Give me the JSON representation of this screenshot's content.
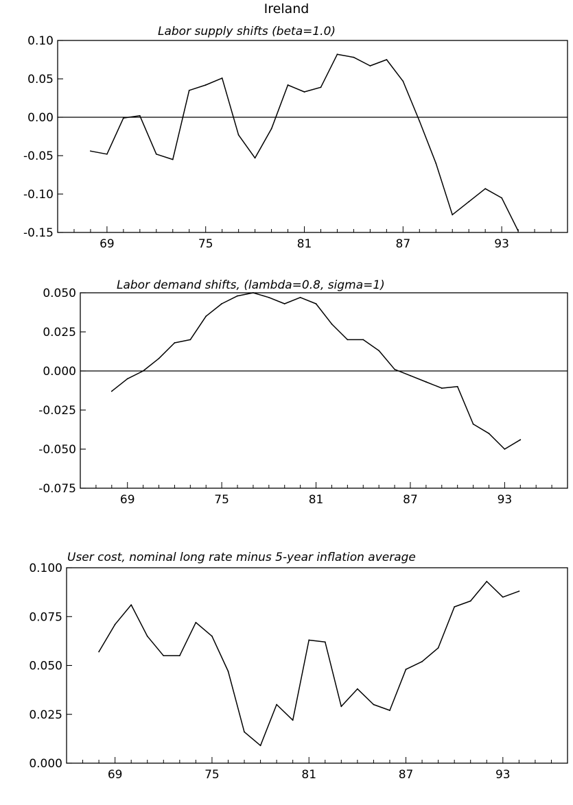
{
  "page_title": "Ireland",
  "chart_data": [
    {
      "type": "line",
      "title": "Labor supply shifts (beta=1.0)",
      "xlabel": "",
      "ylabel": "",
      "xlim": [
        1966,
        1997
      ],
      "ylim": [
        -0.15,
        0.1
      ],
      "xticks": [
        "69",
        "75",
        "81",
        "87",
        "93"
      ],
      "xtick_values": [
        1969,
        1975,
        1981,
        1987,
        1993
      ],
      "yticks": [
        "0.10",
        "0.05",
        "0.00",
        "-0.05",
        "-0.10",
        "-0.15"
      ],
      "ytick_values": [
        0.1,
        0.05,
        0.0,
        -0.05,
        -0.1,
        -0.15
      ],
      "zero_line": true,
      "grid": false,
      "series": [
        {
          "x": [
            1968,
            1969,
            1970,
            1971,
            1972,
            1973,
            1974,
            1975,
            1976,
            1977,
            1978,
            1979,
            1980,
            1981,
            1982,
            1983,
            1984,
            1985,
            1986,
            1987,
            1988,
            1989,
            1990,
            1991,
            1992,
            1993,
            1994
          ],
          "values": [
            -0.044,
            -0.048,
            -0.001,
            0.002,
            -0.048,
            -0.055,
            0.035,
            0.042,
            0.051,
            -0.023,
            -0.053,
            -0.015,
            0.042,
            0.033,
            0.039,
            0.082,
            0.078,
            0.067,
            0.075,
            0.047,
            -0.005,
            -0.06,
            -0.127,
            -0.11,
            -0.093,
            -0.105,
            -0.148
          ]
        }
      ]
    },
    {
      "type": "line",
      "title": "Labor demand shifts, (lambda=0.8, sigma=1)",
      "xlabel": "",
      "ylabel": "",
      "xlim": [
        1966,
        1997
      ],
      "ylim": [
        -0.075,
        0.05
      ],
      "xticks": [
        "69",
        "75",
        "81",
        "87",
        "93"
      ],
      "xtick_values": [
        1969,
        1975,
        1981,
        1987,
        1993
      ],
      "yticks": [
        "0.050",
        "0.025",
        "0.000",
        "-0.025",
        "-0.050",
        "-0.075"
      ],
      "ytick_values": [
        0.05,
        0.025,
        0.0,
        -0.025,
        -0.05,
        -0.075
      ],
      "zero_line": true,
      "grid": false,
      "series": [
        {
          "x": [
            1968,
            1969,
            1970,
            1971,
            1972,
            1973,
            1974,
            1975,
            1976,
            1977,
            1978,
            1979,
            1980,
            1981,
            1982,
            1983,
            1984,
            1985,
            1986,
            1987,
            1988,
            1989,
            1990,
            1991,
            1992,
            1993,
            1994
          ],
          "values": [
            -0.013,
            -0.005,
            0.0,
            0.008,
            0.018,
            0.02,
            0.035,
            0.043,
            0.048,
            0.05,
            0.047,
            0.043,
            0.047,
            0.043,
            0.03,
            0.02,
            0.02,
            0.013,
            0.001,
            -0.003,
            -0.007,
            -0.011,
            -0.01,
            -0.034,
            -0.04,
            -0.05,
            -0.044
          ]
        }
      ]
    },
    {
      "type": "line",
      "title": "User cost, nominal long rate minus 5-year inflation average",
      "xlabel": "",
      "ylabel": "",
      "xlim": [
        1966,
        1997
      ],
      "ylim": [
        0.0,
        0.1
      ],
      "xticks": [
        "69",
        "75",
        "81",
        "87",
        "93"
      ],
      "xtick_values": [
        1969,
        1975,
        1981,
        1987,
        1993
      ],
      "yticks": [
        "0.100",
        "0.075",
        "0.050",
        "0.025",
        "0.000"
      ],
      "ytick_values": [
        0.1,
        0.075,
        0.05,
        0.025,
        0.0
      ],
      "zero_line": false,
      "grid": false,
      "series": [
        {
          "x": [
            1968,
            1969,
            1970,
            1971,
            1972,
            1973,
            1974,
            1975,
            1976,
            1977,
            1978,
            1979,
            1980,
            1981,
            1982,
            1983,
            1984,
            1985,
            1986,
            1987,
            1988,
            1989,
            1990,
            1991,
            1992,
            1993,
            1994
          ],
          "values": [
            0.057,
            0.071,
            0.081,
            0.065,
            0.055,
            0.055,
            0.072,
            0.065,
            0.047,
            0.016,
            0.009,
            0.03,
            0.022,
            0.063,
            0.062,
            0.029,
            0.038,
            0.03,
            0.027,
            0.048,
            0.052,
            0.059,
            0.08,
            0.083,
            0.093,
            0.085,
            0.088
          ]
        }
      ]
    }
  ]
}
